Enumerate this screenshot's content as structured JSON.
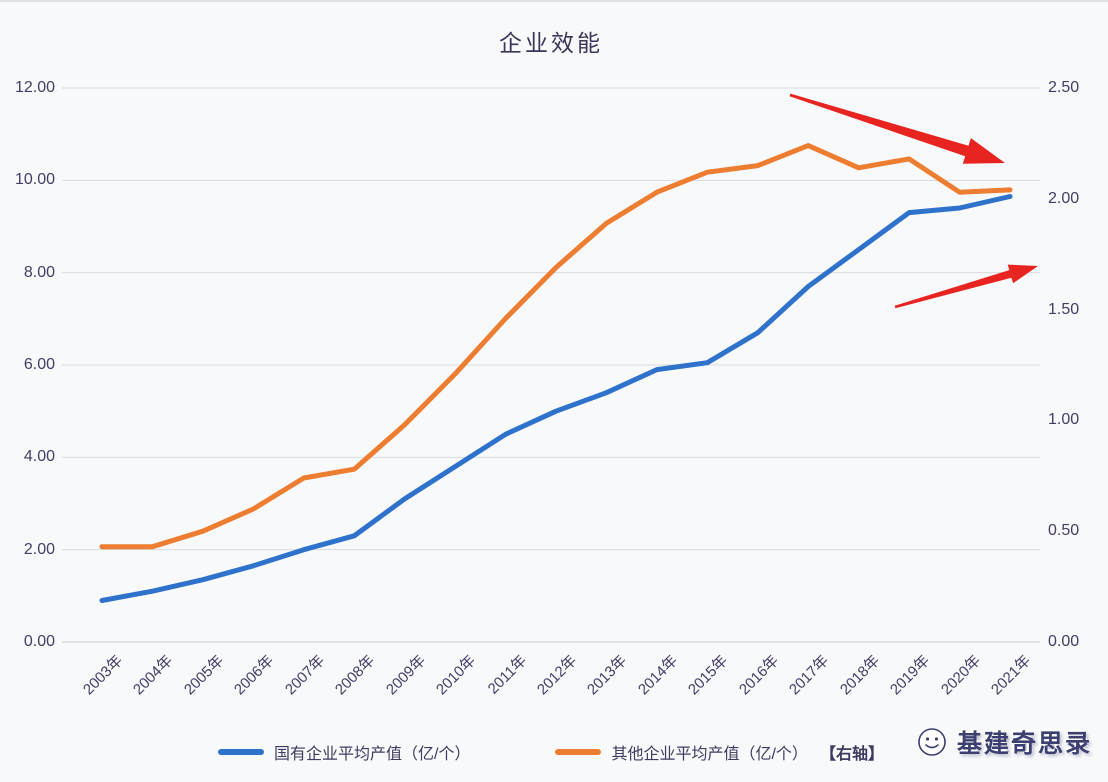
{
  "title": "企业效能",
  "watermark": {
    "text": "基建奇思录",
    "logo": "smiley-face-logo"
  },
  "legend": [
    {
      "label": "国有企业平均产值（亿/个）",
      "color": "#2e72cc"
    },
    {
      "label": "其他企业平均产值（亿/个）",
      "axis_note": "【右轴】",
      "color": "#ed7d31"
    }
  ],
  "chart_data": {
    "type": "line",
    "title": "企业效能",
    "categories": [
      "2003年",
      "2004年",
      "2005年",
      "2006年",
      "2007年",
      "2008年",
      "2009年",
      "2010年",
      "2011年",
      "2012年",
      "2013年",
      "2014年",
      "2015年",
      "2016年",
      "2017年",
      "2018年",
      "2019年",
      "2020年",
      "2021年"
    ],
    "series": [
      {
        "name": "国有企业平均产值（亿/个）",
        "axis": "left",
        "color": "#2e72cc",
        "values": [
          0.9,
          1.1,
          1.35,
          1.65,
          2.0,
          2.3,
          3.1,
          3.8,
          4.5,
          5.0,
          5.4,
          5.9,
          6.05,
          6.7,
          7.7,
          8.5,
          9.3,
          9.4,
          9.65
        ]
      },
      {
        "name": "其他企业平均产值（亿/个）【右轴】",
        "axis": "right",
        "color": "#ed7d31",
        "values": [
          0.43,
          0.43,
          0.5,
          0.6,
          0.74,
          0.78,
          0.98,
          1.21,
          1.46,
          1.69,
          1.89,
          2.03,
          2.12,
          2.15,
          2.24,
          2.14,
          2.18,
          2.03,
          2.04
        ]
      }
    ],
    "left_axis": {
      "min": 0,
      "max": 12,
      "ticks": [
        "12.00",
        "10.00",
        "8.00",
        "6.00",
        "4.00",
        "2.00",
        "0.00"
      ]
    },
    "right_axis": {
      "min": 0,
      "max": 2.5,
      "ticks": [
        "2.50",
        "2.00",
        "1.50",
        "1.00",
        "0.50",
        "0.00"
      ]
    },
    "grid": "horizontal",
    "legend_position": "bottom",
    "annotations": [
      {
        "type": "arrow",
        "color": "#e82420",
        "from": [
          0.7444,
          0.0126
        ],
        "to": [
          0.9642,
          0.1354
        ],
        "scale": 1.0
      },
      {
        "type": "arrow",
        "color": "#e82420",
        "from": [
          0.8518,
          0.3953
        ],
        "to": [
          0.998,
          0.3213
        ],
        "scale": 0.72
      }
    ]
  }
}
